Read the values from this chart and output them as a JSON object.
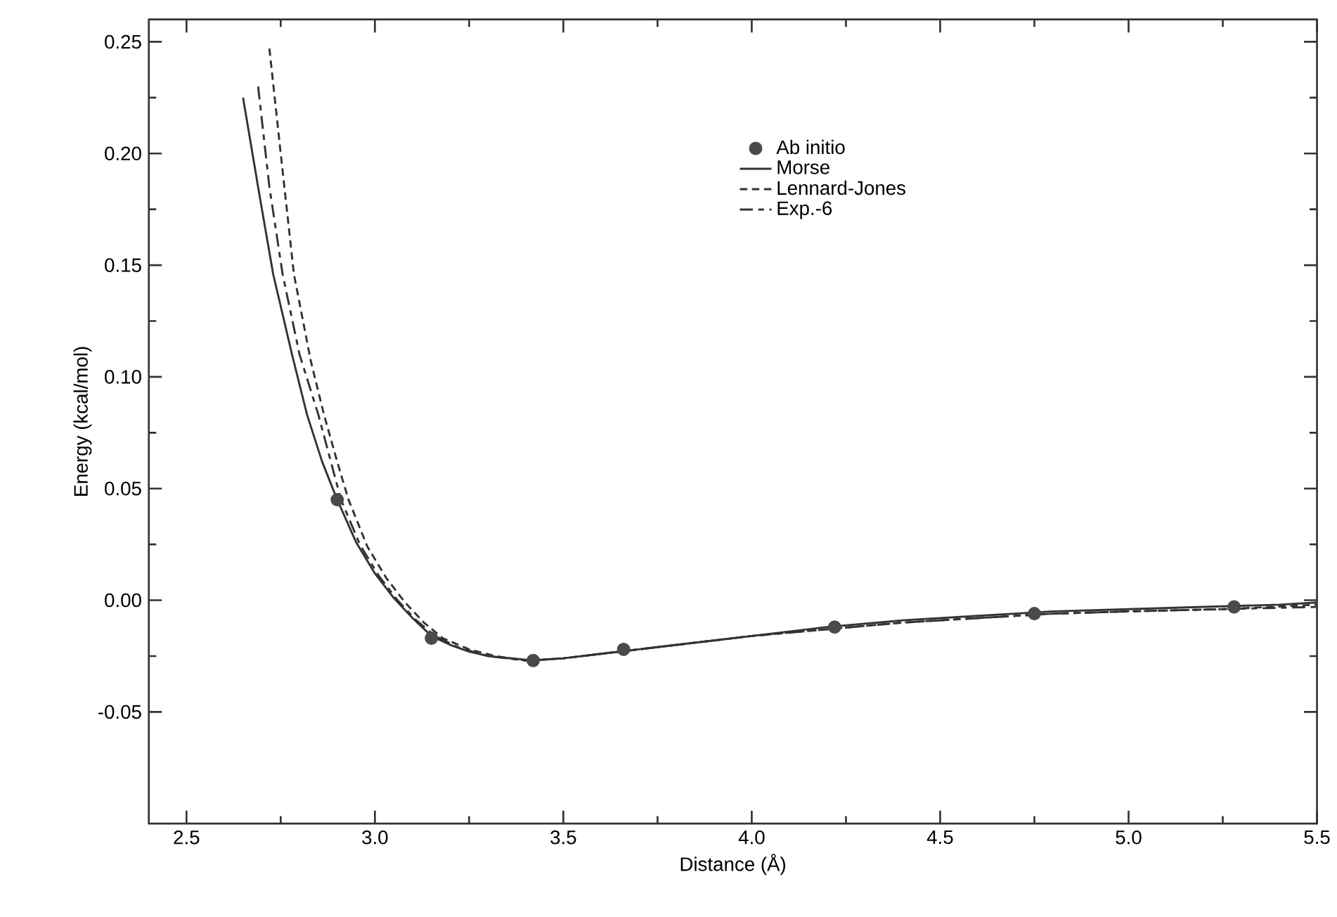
{
  "chart_data": {
    "type": "line",
    "xlabel": "Distance (Å)",
    "ylabel": "Energy (kcal/mol)",
    "xlim": [
      2.4,
      5.5
    ],
    "ylim": [
      -0.1,
      0.26
    ],
    "xticks": [
      {
        "value": 2.5,
        "label": "2.5"
      },
      {
        "value": 3.0,
        "label": "3.0"
      },
      {
        "value": 3.5,
        "label": "3.5"
      },
      {
        "value": 4.0,
        "label": "4.0"
      },
      {
        "value": 4.5,
        "label": "4.5"
      },
      {
        "value": 5.0,
        "label": "5.0"
      },
      {
        "value": 5.5,
        "label": "5.5"
      }
    ],
    "yticks": [
      {
        "value": -0.05,
        "label": "-0.05"
      },
      {
        "value": 0,
        "label": "0.00"
      },
      {
        "value": 0.05,
        "label": "0.05"
      },
      {
        "value": 0.1,
        "label": "0.10"
      },
      {
        "value": 0.15,
        "label": "0.15"
      },
      {
        "value": 0.2,
        "label": "0.20"
      },
      {
        "value": 0.25,
        "label": "0.25"
      }
    ],
    "grid": false,
    "legend": "top right",
    "series": [
      {
        "name": "Ab initio",
        "type": "scatter",
        "color": "#4a4a4a",
        "x": [
          2.9,
          3.15,
          3.42,
          3.66,
          4.22,
          4.75,
          5.28
        ],
        "values": [
          0.045,
          -0.017,
          -0.027,
          -0.022,
          -0.012,
          -0.006,
          -0.003
        ]
      },
      {
        "name": "Morse",
        "type": "line",
        "line_style": "solid",
        "color": "#333333",
        "x": [
          2.65,
          2.69,
          2.73,
          2.78,
          2.82,
          2.86,
          2.9,
          2.95,
          3.0,
          3.05,
          3.1,
          3.15,
          3.2,
          3.25,
          3.3,
          3.36,
          3.42,
          3.5,
          3.6,
          3.7,
          3.8,
          3.9,
          4.0,
          4.2,
          4.4,
          4.6,
          4.8,
          5.0,
          5.2,
          5.4,
          5.5
        ],
        "values": [
          0.225,
          0.185,
          0.146,
          0.11,
          0.083,
          0.062,
          0.045,
          0.026,
          0.012,
          0.001,
          -0.008,
          -0.016,
          -0.02,
          -0.023,
          -0.025,
          -0.026,
          -0.027,
          -0.026,
          -0.024,
          -0.022,
          -0.02,
          -0.018,
          -0.016,
          -0.012,
          -0.009,
          -0.007,
          -0.005,
          -0.004,
          -0.003,
          -0.002,
          -0.001
        ]
      },
      {
        "name": "Lennard-Jones",
        "type": "line",
        "line_style": "dashed",
        "color": "#333333",
        "x": [
          2.72,
          2.75,
          2.785,
          2.83,
          2.865,
          2.9,
          2.93,
          2.98,
          3.03,
          3.08,
          3.13,
          3.18,
          3.25,
          3.32,
          3.4,
          3.5,
          3.6,
          3.7,
          3.85,
          4.0,
          4.2,
          4.4,
          4.6,
          4.8,
          5.0,
          5.25,
          5.5
        ],
        "values": [
          0.247,
          0.2,
          0.146,
          0.107,
          0.083,
          0.062,
          0.045,
          0.024,
          0.01,
          -0.001,
          -0.01,
          -0.017,
          -0.022,
          -0.025,
          -0.027,
          -0.026,
          -0.024,
          -0.022,
          -0.019,
          -0.016,
          -0.013,
          -0.01,
          -0.008,
          -0.006,
          -0.005,
          -0.004,
          -0.002
        ]
      },
      {
        "name": "Exp.-6",
        "type": "line",
        "line_style": "dashed",
        "color": "#333333",
        "x": [
          2.69,
          2.72,
          2.755,
          2.8,
          2.85,
          2.88,
          2.91,
          2.96,
          3.01,
          3.06,
          3.11,
          3.16,
          3.22,
          3.3,
          3.4,
          3.5,
          3.6,
          3.7,
          3.85,
          4.0,
          4.2,
          4.4,
          4.6,
          4.8,
          5.0,
          5.25,
          5.5
        ],
        "values": [
          0.23,
          0.185,
          0.146,
          0.11,
          0.083,
          0.064,
          0.045,
          0.025,
          0.011,
          0.0,
          -0.009,
          -0.016,
          -0.021,
          -0.025,
          -0.027,
          -0.026,
          -0.024,
          -0.022,
          -0.019,
          -0.016,
          -0.013,
          -0.01,
          -0.008,
          -0.006,
          -0.005,
          -0.004,
          -0.003
        ]
      }
    ]
  }
}
